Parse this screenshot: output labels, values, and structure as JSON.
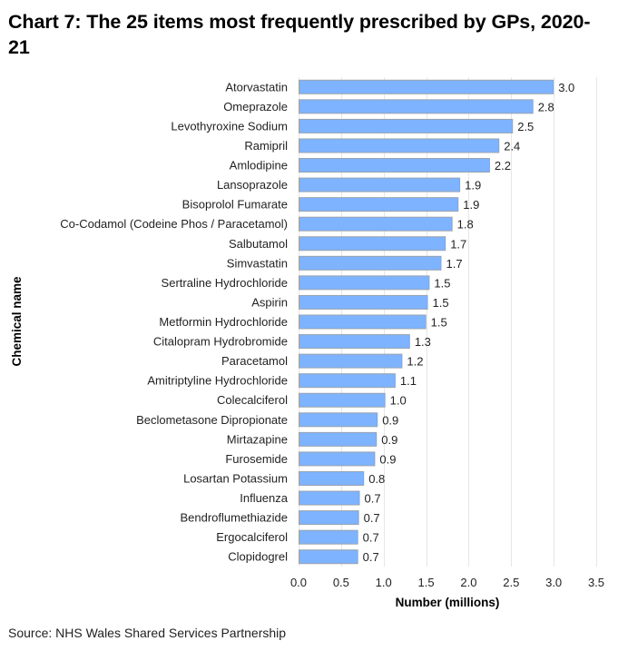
{
  "title": "Chart 7: The 25 items most frequently prescribed by GPs, 2020-21",
  "source": "Source: NHS Wales Shared Services Partnership",
  "colors": {
    "bar_fill": "#7EB3FF",
    "bar_stroke": "#9AA3AE",
    "grid": "#E6E6E6"
  },
  "chart_data": {
    "type": "bar",
    "orientation": "horizontal",
    "title": "Chart 7: The 25 items most frequently prescribed by GPs, 2020-21",
    "xlabel": "Number (millions)",
    "ylabel": "Chemical name",
    "xlim": [
      0,
      3.5
    ],
    "xticks": [
      0.0,
      0.5,
      1.0,
      1.5,
      2.0,
      2.5,
      3.0,
      3.5
    ],
    "xtick_labels": [
      "0.0",
      "0.5",
      "1.0",
      "1.5",
      "2.0",
      "2.5",
      "3.0",
      "3.5"
    ],
    "grid": "vertical",
    "legend": "none",
    "data_labels": true,
    "categories": [
      "Atorvastatin",
      "Omeprazole",
      "Levothyroxine Sodium",
      "Ramipril",
      "Amlodipine",
      "Lansoprazole",
      "Bisoprolol Fumarate",
      "Co-Codamol (Codeine Phos / Paracetamol)",
      "Salbutamol",
      "Simvastatin",
      "Sertraline Hydrochloride",
      "Aspirin",
      "Metformin Hydrochloride",
      "Citalopram Hydrobromide",
      "Paracetamol",
      "Amitriptyline Hydrochloride",
      "Colecalciferol",
      "Beclometasone Dipropionate",
      "Mirtazapine",
      "Furosemide",
      "Losartan Potassium",
      "Influenza",
      "Bendroflumethiazide",
      "Ergocalciferol",
      "Clopidogrel"
    ],
    "values": [
      2.99,
      2.75,
      2.51,
      2.35,
      2.24,
      1.89,
      1.87,
      1.8,
      1.72,
      1.67,
      1.53,
      1.51,
      1.49,
      1.3,
      1.21,
      1.13,
      1.01,
      0.92,
      0.91,
      0.89,
      0.76,
      0.71,
      0.7,
      0.69,
      0.69
    ],
    "value_labels": [
      "3.0",
      "2.8",
      "2.5",
      "2.4",
      "2.2",
      "1.9",
      "1.9",
      "1.8",
      "1.7",
      "1.7",
      "1.5",
      "1.5",
      "1.5",
      "1.3",
      "1.2",
      "1.1",
      "1.0",
      "0.9",
      "0.9",
      "0.9",
      "0.8",
      "0.7",
      "0.7",
      "0.7",
      "0.7"
    ]
  }
}
